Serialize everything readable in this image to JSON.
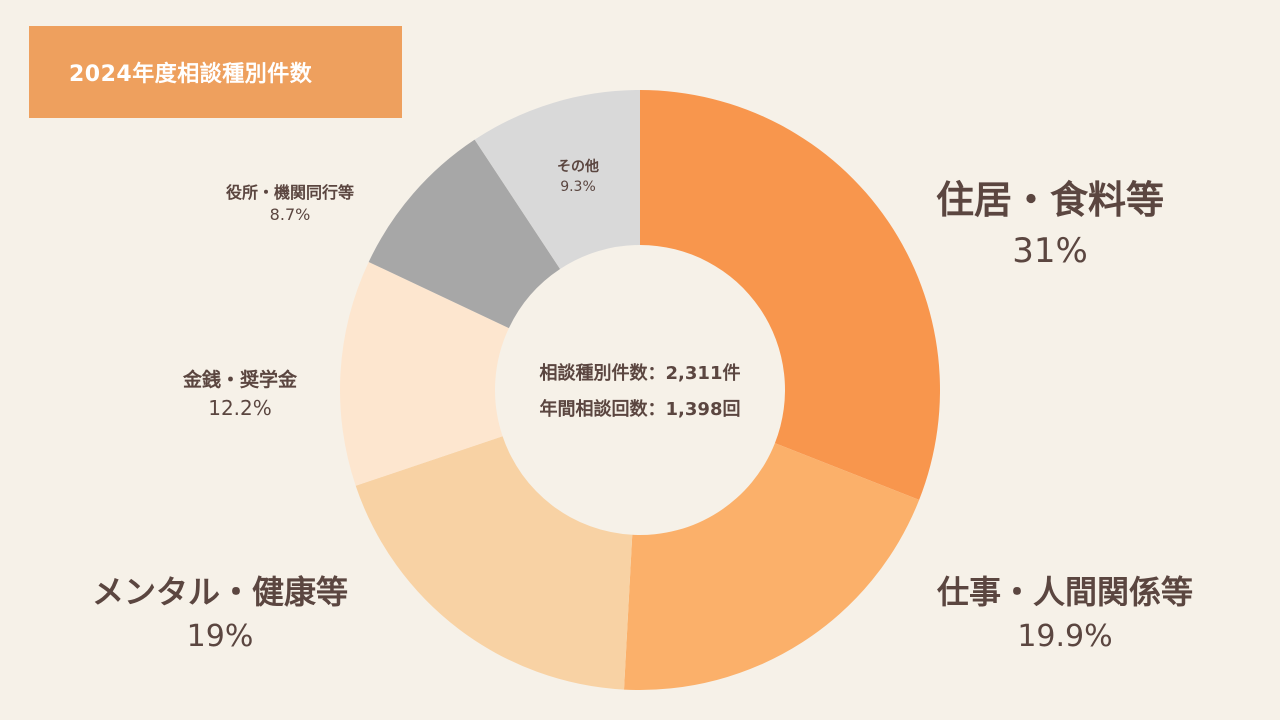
{
  "header": {
    "title": "2024年度相談種別件数"
  },
  "center": {
    "line1": "相談種別件数：2,311件",
    "line2": "年間相談回数：1,398回"
  },
  "chart_data": {
    "type": "pie",
    "donut": true,
    "title": "2024年度相談種別件数",
    "start_angle_deg": 0,
    "direction": "clockwise",
    "slices": [
      {
        "label": "住居・食料等",
        "value": 31,
        "display": "31%",
        "color": "#F8964D"
      },
      {
        "label": "仕事・人間関係等",
        "value": 19.9,
        "display": "19.9%",
        "color": "#FBB06A"
      },
      {
        "label": "メンタル・健康等",
        "value": 19,
        "display": "19%",
        "color": "#F8D2A4"
      },
      {
        "label": "金銭・奨学金",
        "value": 12.2,
        "display": "12.2%",
        "color": "#FDE6CF"
      },
      {
        "label": "役所・機関同行等",
        "value": 8.7,
        "display": "8.7%",
        "color": "#A7A7A7"
      },
      {
        "label": "その他",
        "value": 9.3,
        "display": "9.3%",
        "color": "#D9D9D9"
      }
    ]
  }
}
